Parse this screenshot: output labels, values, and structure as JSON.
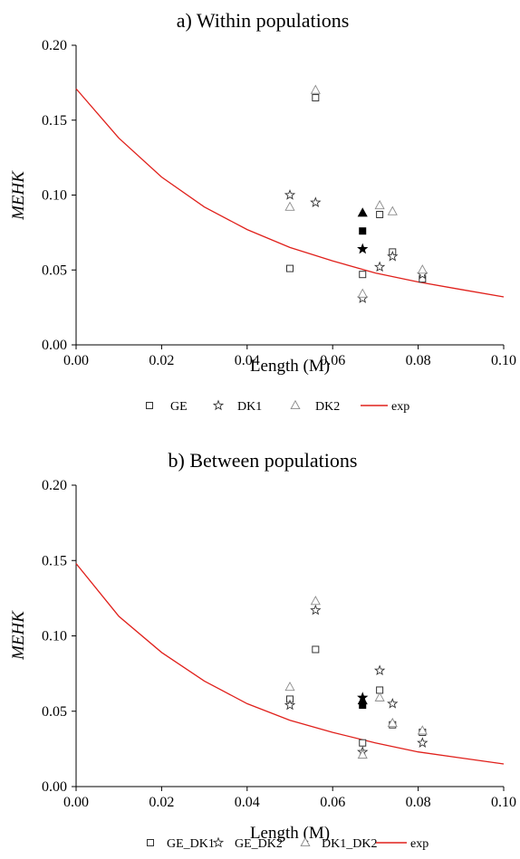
{
  "chart_data": [
    {
      "type": "scatter",
      "title": "a) Within populations",
      "xlabel": "Length (M)",
      "ylabel": "MEHK",
      "xlim": [
        0.0,
        0.1
      ],
      "ylim": [
        0.0,
        0.2
      ],
      "x_ticks": [
        "0.00",
        "0.02",
        "0.04",
        "0.06",
        "0.08",
        "0.10"
      ],
      "y_ticks": [
        "0.00",
        "0.05",
        "0.10",
        "0.15",
        "0.20"
      ],
      "grid": false,
      "legend_position": "bottom",
      "legend": [
        {
          "label": "GE",
          "marker": "square"
        },
        {
          "label": "DK1",
          "marker": "star"
        },
        {
          "label": "DK2",
          "marker": "triangle"
        },
        {
          "label": "exp",
          "marker": "line"
        }
      ],
      "series": [
        {
          "name": "GE",
          "marker": "square",
          "points": [
            [
              0.05,
              0.051
            ],
            [
              0.056,
              0.165
            ],
            [
              0.067,
              0.047
            ],
            [
              0.071,
              0.087
            ],
            [
              0.074,
              0.062
            ],
            [
              0.081,
              0.044
            ]
          ]
        },
        {
          "name": "DK1",
          "marker": "star",
          "points": [
            [
              0.05,
              0.1
            ],
            [
              0.056,
              0.095
            ],
            [
              0.067,
              0.031
            ],
            [
              0.071,
              0.052
            ],
            [
              0.074,
              0.059
            ],
            [
              0.081,
              0.047
            ]
          ]
        },
        {
          "name": "DK2",
          "marker": "triangle",
          "points": [
            [
              0.05,
              0.092
            ],
            [
              0.056,
              0.17
            ],
            [
              0.067,
              0.034
            ],
            [
              0.071,
              0.093
            ],
            [
              0.074,
              0.089
            ],
            [
              0.081,
              0.05
            ]
          ]
        }
      ],
      "highlighted": [
        {
          "marker": "triangle",
          "x": 0.067,
          "y": 0.088
        },
        {
          "marker": "square",
          "x": 0.067,
          "y": 0.076
        },
        {
          "marker": "star",
          "x": 0.067,
          "y": 0.064
        }
      ],
      "exp_curve": {
        "name": "exp",
        "color": "#e0201b",
        "x": [
          0,
          0.01,
          0.02,
          0.03,
          0.04,
          0.05,
          0.06,
          0.07,
          0.08,
          0.09,
          0.1
        ],
        "y": [
          0.171,
          0.138,
          0.112,
          0.092,
          0.077,
          0.065,
          0.056,
          0.048,
          0.042,
          0.037,
          0.032
        ]
      }
    },
    {
      "type": "scatter",
      "title": "b) Between populations",
      "xlabel": "Length (M)",
      "ylabel": "MEHK",
      "xlim": [
        0.0,
        0.1
      ],
      "ylim": [
        0.0,
        0.2
      ],
      "x_ticks": [
        "0.00",
        "0.02",
        "0.04",
        "0.06",
        "0.08",
        "0.10"
      ],
      "y_ticks": [
        "0.00",
        "0.05",
        "0.10",
        "0.15",
        "0.20"
      ],
      "grid": false,
      "legend_position": "bottom",
      "legend": [
        {
          "label": "GE_DK1",
          "marker": "square"
        },
        {
          "label": "GE_DK2",
          "marker": "star"
        },
        {
          "label": "DK1_DK2",
          "marker": "triangle"
        },
        {
          "label": "exp",
          "marker": "line"
        }
      ],
      "series": [
        {
          "name": "GE_DK1",
          "marker": "square",
          "points": [
            [
              0.05,
              0.058
            ],
            [
              0.056,
              0.091
            ],
            [
              0.067,
              0.029
            ],
            [
              0.071,
              0.064
            ],
            [
              0.074,
              0.041
            ],
            [
              0.081,
              0.036
            ]
          ]
        },
        {
          "name": "GE_DK2",
          "marker": "star",
          "points": [
            [
              0.05,
              0.054
            ],
            [
              0.056,
              0.117
            ],
            [
              0.067,
              0.023
            ],
            [
              0.071,
              0.077
            ],
            [
              0.074,
              0.055
            ],
            [
              0.081,
              0.029
            ]
          ]
        },
        {
          "name": "DK1_DK2",
          "marker": "triangle",
          "points": [
            [
              0.05,
              0.066
            ],
            [
              0.056,
              0.123
            ],
            [
              0.067,
              0.021
            ],
            [
              0.071,
              0.059
            ],
            [
              0.074,
              0.042
            ],
            [
              0.081,
              0.037
            ]
          ]
        }
      ],
      "highlighted": [
        {
          "marker": "star",
          "x": 0.067,
          "y": 0.059
        },
        {
          "marker": "triangle",
          "x": 0.067,
          "y": 0.057
        },
        {
          "marker": "square",
          "x": 0.067,
          "y": 0.054
        }
      ],
      "exp_curve": {
        "name": "exp",
        "color": "#e0201b",
        "x": [
          0,
          0.01,
          0.02,
          0.03,
          0.04,
          0.05,
          0.06,
          0.07,
          0.08,
          0.09,
          0.1
        ],
        "y": [
          0.148,
          0.113,
          0.089,
          0.07,
          0.055,
          0.044,
          0.036,
          0.029,
          0.023,
          0.019,
          0.015
        ]
      }
    }
  ]
}
